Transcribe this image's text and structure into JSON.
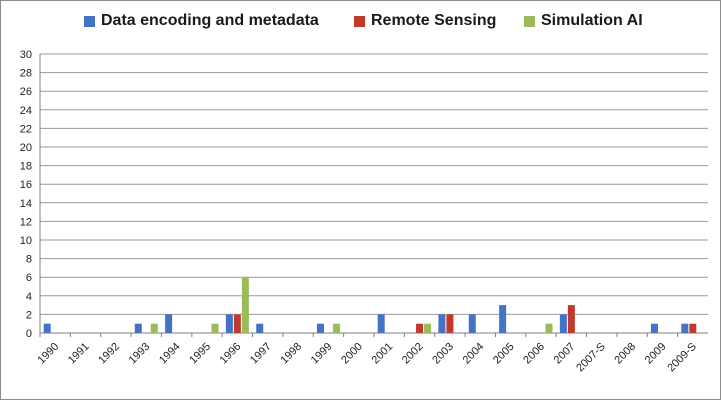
{
  "chart_data": {
    "type": "bar",
    "categories": [
      "1990",
      "1991",
      "1992",
      "1993",
      "1994",
      "1995",
      "1996",
      "1997",
      "1998",
      "1999",
      "2000",
      "2001",
      "2002",
      "2003",
      "2004",
      "2005",
      "2006",
      "2007",
      "2007-S",
      "2008",
      "2009",
      "2009-S"
    ],
    "series": [
      {
        "name": "Data encoding and metadata",
        "color": "#4472C4",
        "values": [
          1,
          0,
          0,
          1,
          2,
          0,
          2,
          1,
          0,
          1,
          0,
          2,
          0,
          2,
          2,
          3,
          0,
          2,
          0,
          0,
          1,
          1
        ]
      },
      {
        "name": "Remote Sensing",
        "color": "#C0392B",
        "values": [
          0,
          0,
          0,
          0,
          0,
          0,
          2,
          0,
          0,
          0,
          0,
          0,
          1,
          2,
          0,
          0,
          0,
          3,
          0,
          0,
          0,
          1
        ]
      },
      {
        "name": "Simulation AI",
        "color": "#9BBB59",
        "values": [
          0,
          0,
          0,
          1,
          0,
          1,
          6,
          0,
          0,
          1,
          0,
          0,
          1,
          0,
          0,
          0,
          1,
          0,
          0,
          0,
          0,
          0
        ]
      }
    ],
    "title": "",
    "xlabel": "",
    "ylabel": "",
    "ylim": [
      0,
      30
    ],
    "yticks": [
      0,
      2,
      4,
      6,
      8,
      10,
      12,
      14,
      16,
      18,
      20,
      22,
      24,
      26,
      28,
      30
    ],
    "grid": true,
    "legend": "top"
  }
}
